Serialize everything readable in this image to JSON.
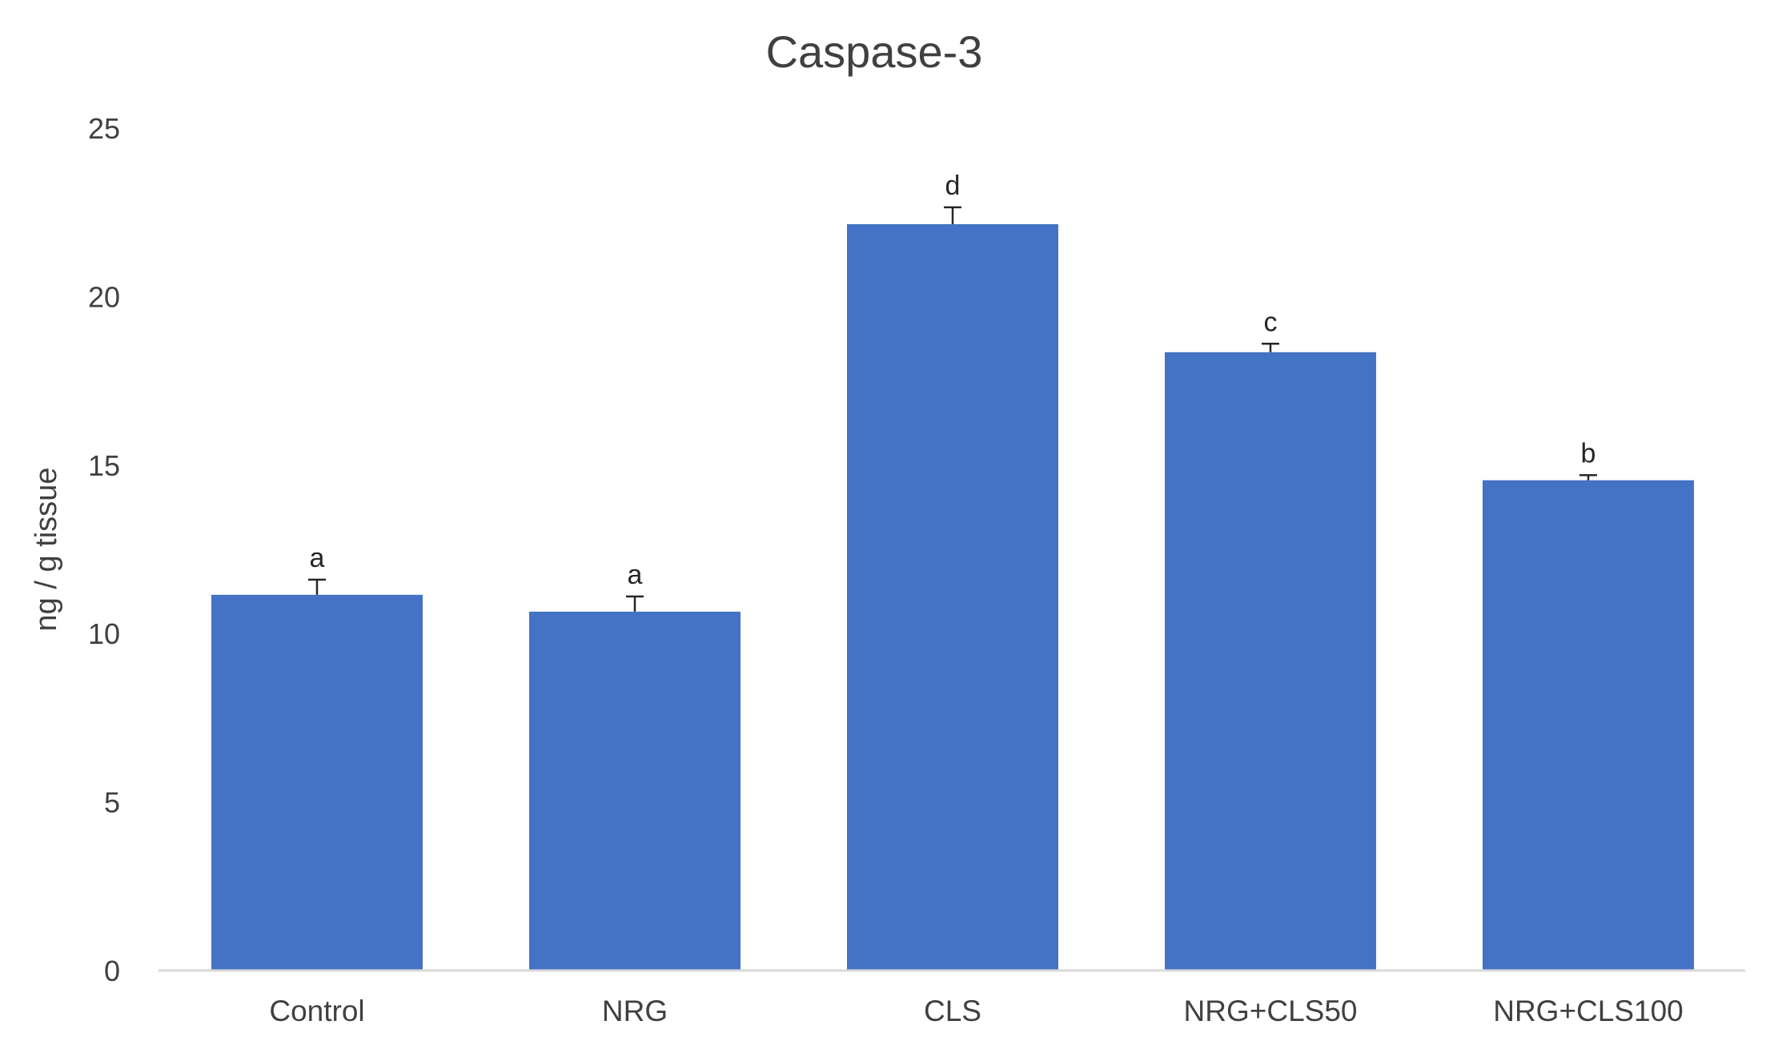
{
  "chart_data": {
    "type": "bar",
    "title": "Caspase-3",
    "xlabel": "",
    "ylabel": "ng / g tissue",
    "categories": [
      "Control",
      "NRG",
      "CLS",
      "NRG+CLS50",
      "NRG+CLS100"
    ],
    "values": [
      11.15,
      10.65,
      22.15,
      18.35,
      14.55
    ],
    "errors": [
      0.45,
      0.45,
      0.5,
      0.25,
      0.15
    ],
    "significance_labels": [
      "a",
      "a",
      "d",
      "c",
      "b"
    ],
    "ylim": [
      0,
      25
    ],
    "yticks": [
      "0",
      "5",
      "10",
      "15",
      "20",
      "25"
    ],
    "grid": false,
    "legend": "none",
    "bar_color": "#4472C4",
    "axis_color": "#D9D9D9",
    "text_color": "#404040"
  }
}
